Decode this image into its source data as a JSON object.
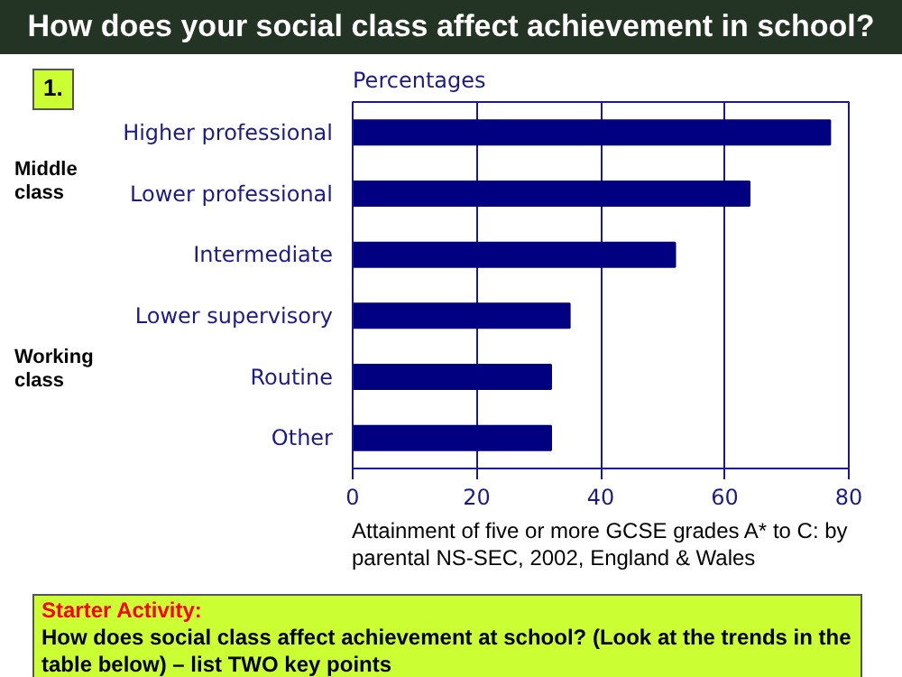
{
  "chart_data": {
    "type": "bar",
    "orientation": "horizontal",
    "title": "How does your social class affect achievement in school?",
    "xlabel": "Percentages",
    "categories": [
      "Higher professional",
      "Lower professional",
      "Intermediate",
      "Lower supervisory",
      "Routine",
      "Other"
    ],
    "values": [
      77,
      64,
      52,
      35,
      32,
      32
    ],
    "color": "#000080",
    "xlim": [
      0,
      80
    ],
    "xticks": [
      0,
      20,
      40,
      60,
      80
    ],
    "grid": "x",
    "annotations": [
      "1.",
      "Middle class",
      "Working class",
      "Attainment of five or more GCSE grades A* to C: by parental NS-SEC, 2002, England & Wales",
      "Starter Activity:",
      "How does social class affect achievement at school? (Look at the trends in the table below) – list TWO key points"
    ]
  }
}
